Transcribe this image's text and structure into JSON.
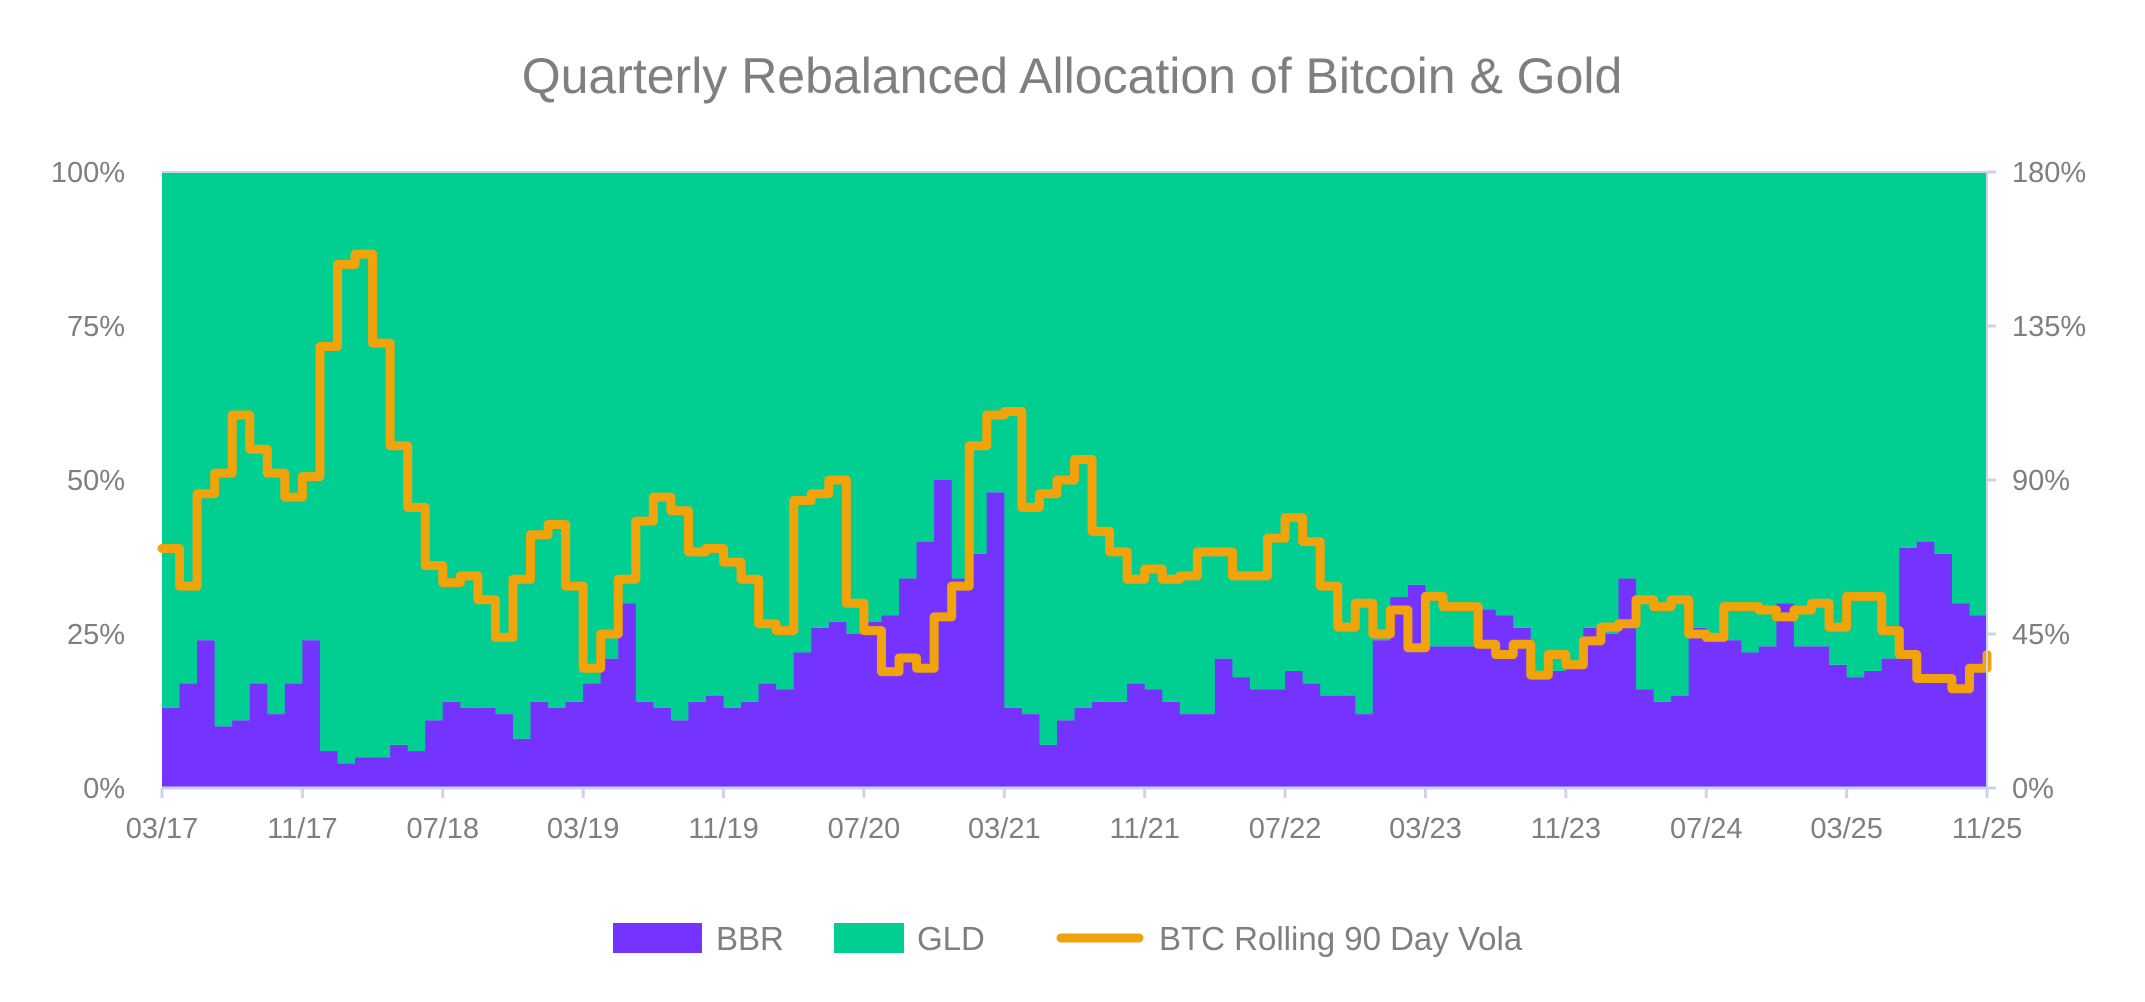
{
  "chart_data": {
    "type": "area",
    "stacked_percent": true,
    "step": true,
    "title": "Quarterly Rebalanced Allocation of Bitcoin & Gold",
    "x": [
      "03/17",
      "04/17",
      "05/17",
      "06/17",
      "07/17",
      "08/17",
      "09/17",
      "10/17",
      "11/17",
      "12/17",
      "01/18",
      "02/18",
      "03/18",
      "04/18",
      "05/18",
      "06/18",
      "07/18",
      "08/18",
      "09/18",
      "10/18",
      "11/18",
      "12/18",
      "01/19",
      "02/19",
      "03/19",
      "04/19",
      "05/19",
      "06/19",
      "07/19",
      "08/19",
      "09/19",
      "10/19",
      "11/19",
      "12/19",
      "01/20",
      "02/20",
      "03/20",
      "04/20",
      "05/20",
      "06/20",
      "07/20",
      "08/20",
      "09/20",
      "10/20",
      "11/20",
      "12/20",
      "01/21",
      "02/21",
      "03/21",
      "04/21",
      "05/21",
      "06/21",
      "07/21",
      "08/21",
      "09/21",
      "10/21",
      "11/21",
      "12/21",
      "01/22",
      "02/22",
      "03/22",
      "04/22",
      "05/22",
      "06/22",
      "07/22",
      "08/22",
      "09/22",
      "10/22",
      "11/22",
      "12/22",
      "01/23",
      "02/23",
      "03/23",
      "04/23",
      "05/23",
      "06/23",
      "07/23",
      "08/23",
      "09/23",
      "10/23",
      "11/23",
      "12/23",
      "01/24",
      "02/24",
      "03/24",
      "04/24",
      "05/24",
      "06/24",
      "07/24",
      "08/24",
      "09/24",
      "10/24",
      "11/24",
      "12/24",
      "01/25",
      "02/25",
      "03/25",
      "04/25",
      "05/25",
      "06/25",
      "07/25",
      "08/25",
      "09/25",
      "10/25",
      "11/25"
    ],
    "x_tick_labels": [
      "03/17",
      "11/17",
      "07/18",
      "03/19",
      "11/19",
      "07/20",
      "03/21",
      "11/21",
      "07/22",
      "03/23",
      "11/23",
      "07/24",
      "03/25",
      "11/25"
    ],
    "y_left": {
      "range": [
        0,
        100
      ],
      "unit": "%",
      "tick_labels": [
        "0%",
        "25%",
        "50%",
        "75%",
        "100%"
      ]
    },
    "y_right": {
      "range": [
        0,
        180
      ],
      "unit": "%",
      "tick_labels": [
        "0%",
        "45%",
        "90%",
        "135%",
        "180%"
      ]
    },
    "grid": false,
    "legend_position": "bottom",
    "series": [
      {
        "name": "BBR",
        "axis": "left",
        "kind": "area",
        "color": "#7433FF",
        "values": [
          13,
          17,
          24,
          10,
          11,
          17,
          12,
          17,
          24,
          6,
          4,
          5,
          5,
          7,
          6,
          11,
          14,
          13,
          13,
          12,
          8,
          14,
          13,
          14,
          17,
          21,
          30,
          14,
          13,
          11,
          14,
          15,
          13,
          14,
          17,
          16,
          22,
          26,
          27,
          25,
          27,
          28,
          34,
          40,
          50,
          34,
          38,
          48,
          13,
          12,
          7,
          11,
          13,
          14,
          14,
          17,
          16,
          14,
          12,
          12,
          21,
          18,
          16,
          16,
          19,
          17,
          15,
          15,
          12,
          24,
          31,
          33,
          23,
          23,
          23,
          29,
          28,
          26,
          18,
          19,
          20,
          26,
          25,
          34,
          16,
          14,
          15,
          26,
          25,
          24,
          22,
          23,
          30,
          23,
          23,
          20,
          18,
          19,
          21,
          39,
          40,
          38,
          30,
          28,
          28
        ]
      },
      {
        "name": "GLD",
        "axis": "left",
        "kind": "area",
        "color": "#00CF91",
        "values": [
          87,
          83,
          76,
          90,
          89,
          83,
          88,
          83,
          76,
          94,
          96,
          95,
          95,
          93,
          94,
          89,
          86,
          87,
          87,
          88,
          92,
          86,
          87,
          86,
          83,
          79,
          70,
          86,
          87,
          89,
          86,
          85,
          87,
          86,
          83,
          84,
          78,
          74,
          73,
          75,
          73,
          72,
          66,
          60,
          50,
          66,
          62,
          52,
          87,
          88,
          93,
          89,
          87,
          86,
          86,
          83,
          84,
          86,
          88,
          88,
          79,
          82,
          84,
          84,
          81,
          83,
          85,
          85,
          88,
          76,
          69,
          67,
          77,
          77,
          77,
          71,
          72,
          74,
          82,
          81,
          80,
          74,
          75,
          66,
          84,
          86,
          85,
          74,
          75,
          76,
          78,
          77,
          70,
          77,
          77,
          80,
          82,
          81,
          79,
          61,
          60,
          62,
          70,
          72,
          72
        ]
      },
      {
        "name": "BTC Rolling 90 Day Vola",
        "axis": "right",
        "kind": "line",
        "color": "#F0A30A",
        "values": [
          70,
          59,
          86,
          92,
          109,
          99,
          92,
          85,
          91,
          129,
          153,
          156,
          130,
          100,
          82,
          65,
          60,
          62,
          55,
          44,
          61,
          74,
          77,
          59,
          35,
          45,
          61,
          78,
          85,
          81,
          69,
          70,
          66,
          61,
          48,
          46,
          84,
          86,
          90,
          54,
          46,
          34,
          38,
          35,
          50,
          59,
          100,
          109,
          110,
          82,
          86,
          90,
          96,
          75,
          69,
          61,
          64,
          61,
          62,
          69,
          69,
          62,
          62,
          73,
          79,
          72,
          59,
          47,
          54,
          45,
          52,
          41,
          56,
          53,
          53,
          42,
          39,
          42,
          33,
          39,
          36,
          43,
          47,
          48,
          55,
          53,
          55,
          45,
          44,
          53,
          53,
          52,
          50,
          52,
          54,
          47,
          56,
          56,
          46,
          39,
          32,
          32,
          29,
          35,
          39
        ]
      }
    ]
  },
  "colors": {
    "text": "#7f7f7f",
    "axis": "#c9d3ee"
  }
}
